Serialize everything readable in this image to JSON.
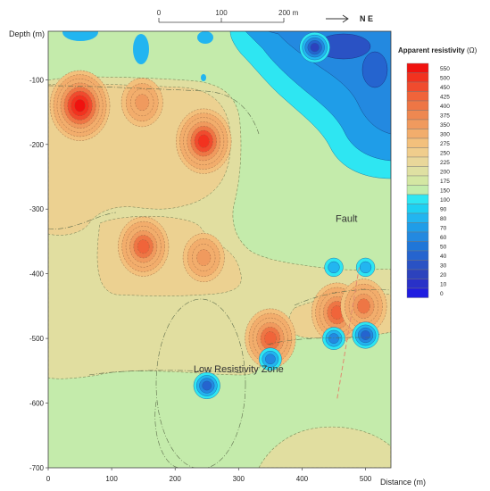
{
  "chart_data": {
    "type": "heatmap",
    "title": "",
    "ylabel": "Depth (m)",
    "xlabel": "Distance (m)",
    "xlim": [
      0,
      540
    ],
    "ylim": [
      -700,
      -25
    ],
    "x_ticks": [
      "0",
      "100",
      "200",
      "300",
      "400",
      "500"
    ],
    "x_tick_values": [
      0,
      100,
      200,
      300,
      400,
      500
    ],
    "y_ticks": [
      "-100",
      "-200",
      "-300",
      "-400",
      "-500",
      "-600",
      "-700"
    ],
    "y_tick_values": [
      -100,
      -200,
      -300,
      -400,
      -500,
      -600,
      -700
    ],
    "scale_bar": {
      "labels": [
        "0",
        "100",
        "200 m"
      ],
      "values": [
        0,
        100,
        200
      ]
    },
    "orientation_label": "N E",
    "legend": {
      "title": "Apparent resistivity",
      "unit": "(Ω)",
      "placement": "right",
      "levels": [
        {
          "value": "550",
          "color": "#f0120f"
        },
        {
          "value": "500",
          "color": "#f2321f"
        },
        {
          "value": "450",
          "color": "#f04b2e"
        },
        {
          "value": "425",
          "color": "#f0643a"
        },
        {
          "value": "400",
          "color": "#ee7645"
        },
        {
          "value": "375",
          "color": "#ee8851"
        },
        {
          "value": "350",
          "color": "#f09a5e"
        },
        {
          "value": "300",
          "color": "#f2ad6c"
        },
        {
          "value": "275",
          "color": "#f3c07c"
        },
        {
          "value": "250",
          "color": "#f0cd8c"
        },
        {
          "value": "225",
          "color": "#e9d79a"
        },
        {
          "value": "200",
          "color": "#dfe0a2"
        },
        {
          "value": "175",
          "color": "#d4e7a3"
        },
        {
          "value": "150",
          "color": "#c3ecab"
        },
        {
          "value": "100",
          "color": "#2ee6f2"
        },
        {
          "value": "90",
          "color": "#1ed0f2"
        },
        {
          "value": "80",
          "color": "#22b5f0"
        },
        {
          "value": "70",
          "color": "#1f9de8"
        },
        {
          "value": "60",
          "color": "#2389e0"
        },
        {
          "value": "50",
          "color": "#1f76d8"
        },
        {
          "value": "40",
          "color": "#2564cf"
        },
        {
          "value": "30",
          "color": "#2a52c4"
        },
        {
          "value": "20",
          "color": "#2c42bd"
        },
        {
          "value": "10",
          "color": "#2931c8"
        },
        {
          "value": "0",
          "color": "#1f1ce0"
        }
      ]
    },
    "annotations": [
      {
        "text": "Fault",
        "x": 470,
        "y": -320
      },
      {
        "text": "Low Resistivity Zone",
        "x": 300,
        "y": -552
      }
    ],
    "fault_line": [
      [
        490,
        -390
      ],
      [
        455,
        -595
      ]
    ],
    "anomalies": [
      {
        "kind": "high",
        "x": 50,
        "y": -140,
        "peak": 550,
        "label": ""
      },
      {
        "kind": "high",
        "x": 148,
        "y": -135,
        "peak": 350,
        "label": ""
      },
      {
        "kind": "high",
        "x": 245,
        "y": -195,
        "peak": 500,
        "label": ""
      },
      {
        "kind": "high",
        "x": 150,
        "y": -358,
        "peak": 425,
        "label": ""
      },
      {
        "kind": "high",
        "x": 245,
        "y": -375,
        "peak": 350,
        "label": ""
      },
      {
        "kind": "high",
        "x": 350,
        "y": -500,
        "peak": 425,
        "label": ""
      },
      {
        "kind": "high",
        "x": 455,
        "y": -460,
        "peak": 425,
        "label": ""
      },
      {
        "kind": "high",
        "x": 497,
        "y": -450,
        "peak": 400,
        "label": ""
      },
      {
        "kind": "low",
        "x": 250,
        "y": -573,
        "peak": 40,
        "label": ""
      },
      {
        "kind": "low",
        "x": 450,
        "y": -500,
        "peak": 50,
        "label": ""
      },
      {
        "kind": "low",
        "x": 500,
        "y": -495,
        "peak": 40,
        "label": ""
      },
      {
        "kind": "low",
        "x": 450,
        "y": -390,
        "peak": 70,
        "label": ""
      },
      {
        "kind": "low",
        "x": 500,
        "y": -390,
        "peak": 70,
        "label": ""
      },
      {
        "kind": "low",
        "x": 350,
        "y": -532,
        "peak": 50,
        "label": ""
      },
      {
        "kind": "low",
        "x": 420,
        "y": -50,
        "peak": 20,
        "label": ""
      }
    ]
  }
}
